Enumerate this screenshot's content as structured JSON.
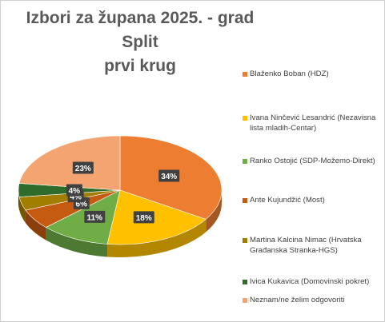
{
  "chart_data": {
    "type": "pie",
    "title": "Izbori za župana 2025. - grad Split prvi krug",
    "title_lines": [
      "Izbori za župana 2025. - grad Split",
      "prvi krug"
    ],
    "categories": [
      "Blaženko Boban (HDZ)",
      "Ivana Ninčević Lesandrić (Nezavisna lista mladih-Centar)",
      "Ranko Ostojić (SDP-Možemo-Direkt)",
      "Ante Kujundžić (Most)",
      "Martina Kalcina Nimac (Hrvatska Građanska Stranka-HGS)",
      "Ivica Kukavica (Domovinski pokret)",
      "Neznam/ne želim odgovoriti"
    ],
    "values": [
      34,
      18,
      11,
      6,
      4,
      4,
      23
    ],
    "data_labels": [
      "34%",
      "18%",
      "11%",
      "6%",
      "4%",
      "4%",
      "23%"
    ],
    "colors": [
      "#ED7D31",
      "#FFC000",
      "#70AD47",
      "#C55A11",
      "#A17E00",
      "#2F6B2A",
      "#F4A470"
    ],
    "legend_position": "right",
    "three_d": true
  }
}
